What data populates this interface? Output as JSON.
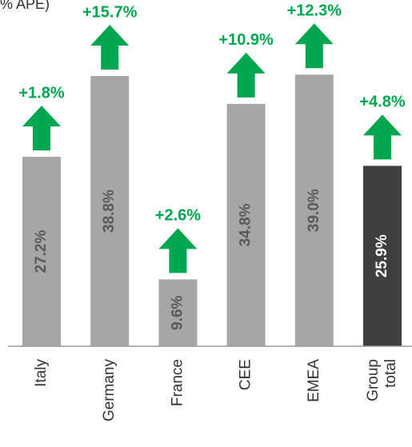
{
  "chart_data": {
    "type": "bar",
    "title": "% APE)",
    "categories": [
      "Italy",
      "Germany",
      "France",
      "CEE",
      "EMEA",
      "Group total"
    ],
    "values": [
      27.2,
      38.8,
      9.6,
      34.8,
      39.0,
      25.9
    ],
    "value_labels": [
      "27.2%",
      "38.8%",
      "9.6%",
      "34.8%",
      "39.0%",
      "25.9%"
    ],
    "colors": [
      "#a6a6a6",
      "#a6a6a6",
      "#a6a6a6",
      "#a6a6a6",
      "#a6a6a6",
      "#3f3f3f"
    ],
    "annotations": [
      "+1.8%",
      "+15.7%",
      "+2.6%",
      "+10.9%",
      "+12.3%",
      "+4.8%"
    ],
    "annotation_color": "#00a650"
  }
}
